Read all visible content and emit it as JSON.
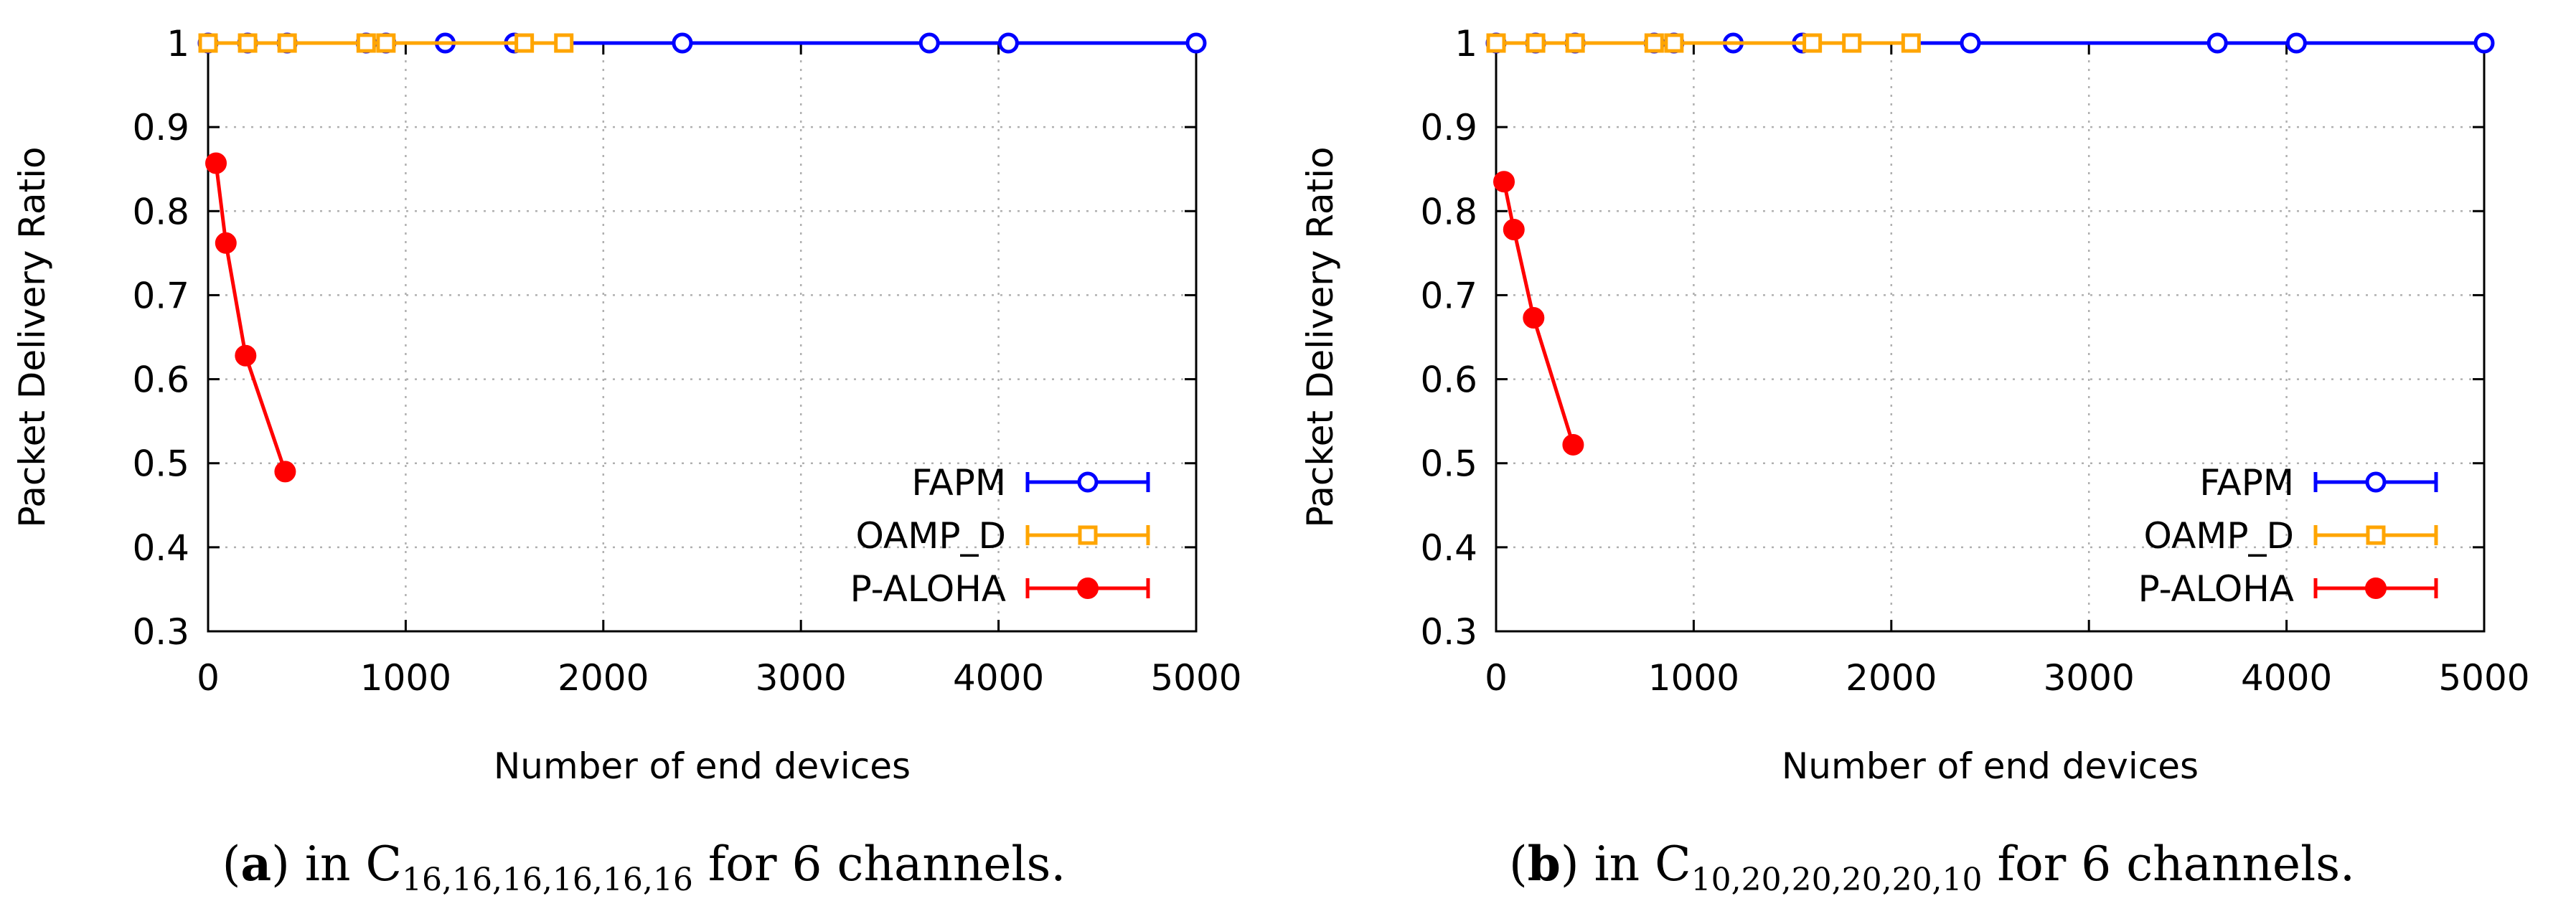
{
  "chart_data": [
    {
      "type": "line",
      "xlabel": "Number of end devices",
      "ylabel": "Packet Delivery Ratio",
      "xlim": [
        0,
        5000
      ],
      "ylim": [
        0.3,
        1.0
      ],
      "xticks": [
        0,
        1000,
        2000,
        3000,
        4000,
        5000
      ],
      "xtick_labels": [
        "0",
        "1000",
        "2000",
        "3000",
        "4000",
        "5000"
      ],
      "yticks": [
        0.3,
        0.4,
        0.5,
        0.6,
        0.7,
        0.8,
        0.9,
        1.0
      ],
      "ytick_labels": [
        "0.3",
        "0.4",
        "0.5",
        "0.6",
        "0.7",
        "0.8",
        "0.9",
        "1"
      ],
      "grid": true,
      "legend_position": "bottom-right",
      "series": [
        {
          "name": "FAPM",
          "color": "#0000ff",
          "marker": "open-circle",
          "x": [
            0,
            200,
            400,
            800,
            900,
            1200,
            1550,
            2400,
            3650,
            4050,
            5000
          ],
          "y": [
            1,
            1,
            1,
            1,
            1,
            1,
            1,
            1,
            1,
            1,
            1
          ]
        },
        {
          "name": "OAMP_D",
          "color": "#ffa500",
          "marker": "open-square",
          "x": [
            0,
            200,
            400,
            800,
            900,
            1600,
            1800
          ],
          "y": [
            1,
            1,
            1,
            1,
            1,
            1,
            1
          ]
        },
        {
          "name": "P-ALOHA",
          "color": "#ff0000",
          "marker": "filled-circle",
          "x": [
            40,
            90,
            190,
            390
          ],
          "y": [
            0.857,
            0.762,
            0.628,
            0.49
          ]
        }
      ],
      "caption": {
        "label": "a",
        "before": "in C",
        "subscript": "16,16,16,16,16,16",
        "after": " for 6 channels."
      }
    },
    {
      "type": "line",
      "xlabel": "Number of end devices",
      "ylabel": "Packet Delivery Ratio",
      "xlim": [
        0,
        5000
      ],
      "ylim": [
        0.3,
        1.0
      ],
      "xticks": [
        0,
        1000,
        2000,
        3000,
        4000,
        5000
      ],
      "xtick_labels": [
        "0",
        "1000",
        "2000",
        "3000",
        "4000",
        "5000"
      ],
      "yticks": [
        0.3,
        0.4,
        0.5,
        0.6,
        0.7,
        0.8,
        0.9,
        1.0
      ],
      "ytick_labels": [
        "0.3",
        "0.4",
        "0.5",
        "0.6",
        "0.7",
        "0.8",
        "0.9",
        "1"
      ],
      "grid": true,
      "legend_position": "bottom-right",
      "series": [
        {
          "name": "FAPM",
          "color": "#0000ff",
          "marker": "open-circle",
          "x": [
            0,
            200,
            400,
            800,
            900,
            1200,
            1550,
            2400,
            3650,
            4050,
            5000
          ],
          "y": [
            1,
            1,
            1,
            1,
            1,
            1,
            1,
            1,
            1,
            1,
            1
          ]
        },
        {
          "name": "OAMP_D",
          "color": "#ffa500",
          "marker": "open-square",
          "x": [
            0,
            200,
            400,
            800,
            900,
            1600,
            1800,
            2100
          ],
          "y": [
            1,
            1,
            1,
            1,
            1,
            1,
            1,
            1
          ]
        },
        {
          "name": "P-ALOHA",
          "color": "#ff0000",
          "marker": "filled-circle",
          "x": [
            40,
            90,
            190,
            390
          ],
          "y": [
            0.835,
            0.778,
            0.673,
            0.522
          ]
        }
      ],
      "caption": {
        "label": "b",
        "before": "in C",
        "subscript": "10,20,20,20,20,10",
        "after": " for 6 channels."
      }
    }
  ]
}
